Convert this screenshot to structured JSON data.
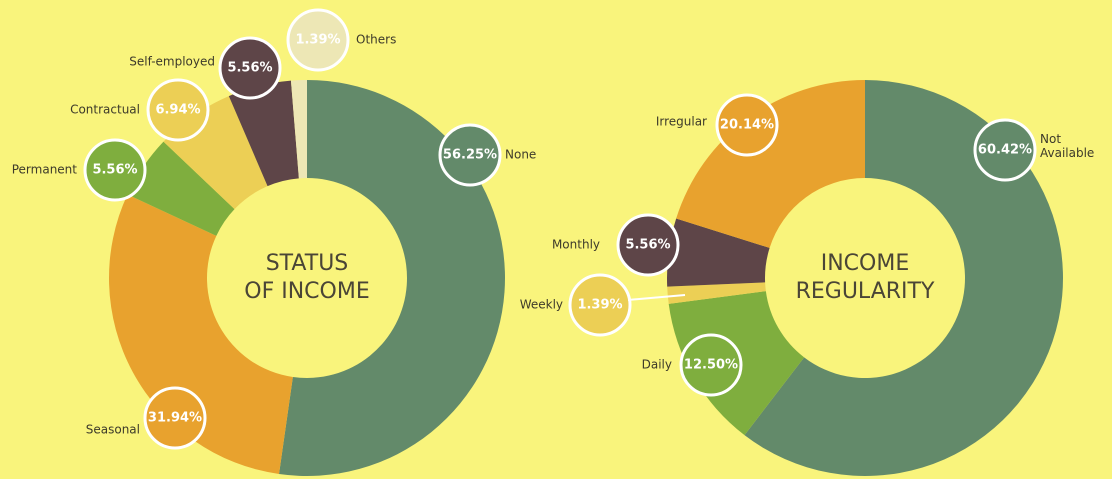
{
  "chart_data": [
    {
      "type": "pie",
      "title": [
        "STATUS",
        "OF INCOME"
      ],
      "categories": [
        "None",
        "Seasonal",
        "Permanent",
        "Contractual",
        "Self-employed",
        "Others"
      ],
      "values": [
        56.25,
        31.94,
        5.56,
        6.94,
        5.56,
        1.39
      ],
      "value_labels": [
        "56.25%",
        "31.94%",
        "5.56%",
        "6.94%",
        "5.56%",
        "1.39%"
      ],
      "colors": [
        "#638a6a",
        "#e8a22e",
        "#7fae3e",
        "#eccf55",
        "#5e4548",
        "#ede7b5"
      ]
    },
    {
      "type": "pie",
      "title": [
        "INCOME",
        "REGULARITY"
      ],
      "categories": [
        "Not Available",
        "Daily",
        "Weekly",
        "Monthly",
        "Irregular"
      ],
      "values": [
        60.42,
        12.5,
        1.39,
        5.56,
        20.14
      ],
      "value_labels": [
        "60.42%",
        "12.50%",
        "1.39%",
        "5.56%",
        "20.14%"
      ],
      "colors": [
        "#638a6a",
        "#7fae3e",
        "#eccf55",
        "#5e4548",
        "#e8a22e"
      ]
    }
  ]
}
